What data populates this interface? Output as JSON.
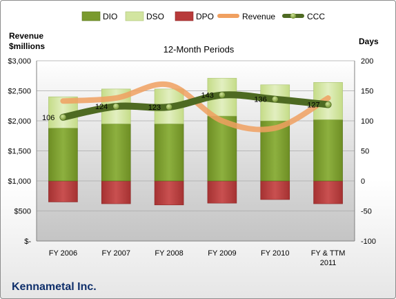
{
  "chart_data": {
    "type": "bar",
    "title": "12-Month Periods",
    "company": "Kennametal Inc.",
    "left_axis_label_line1": "Revenue",
    "left_axis_label_line2": "$millions",
    "right_axis_label": "Days",
    "left_ylim": [
      0,
      3000
    ],
    "right_ylim": [
      -100,
      200
    ],
    "left_ticks": [
      "$-",
      "$500",
      "$1,000",
      "$1,500",
      "$2,000",
      "$2,500",
      "$3,000"
    ],
    "right_ticks": [
      "-100",
      "-50",
      "0",
      "50",
      "100",
      "150",
      "200"
    ],
    "categories": [
      "FY 2006",
      "FY 2007",
      "FY 2008",
      "FY 2009",
      "FY 2010",
      "FY & TTM|2011"
    ],
    "series": [
      {
        "name": "DIO",
        "axis": "days",
        "values": [
          88,
          95,
          95,
          108,
          100,
          102
        ]
      },
      {
        "name": "DSO",
        "axis": "days",
        "values": [
          52,
          58,
          58,
          63,
          60,
          62
        ]
      },
      {
        "name": "DPO",
        "axis": "days",
        "values": [
          -35,
          -38,
          -40,
          -37,
          -31,
          -38
        ]
      },
      {
        "name": "Revenue",
        "axis": "revenue",
        "values": [
          2330,
          2380,
          2600,
          2000,
          1880,
          2380
        ]
      },
      {
        "name": "CCC",
        "axis": "days",
        "values": [
          106,
          124,
          123,
          143,
          136,
          127
        ]
      }
    ],
    "ccc_labels": [
      "106",
      "124",
      "123",
      "143",
      "136",
      "127"
    ],
    "grid": true,
    "legend": "top",
    "colors": {
      "DIO": "#7a9a2e",
      "DSO": "#d2e5a0",
      "DPO": "#b83a3a",
      "Revenue": "#f0a060",
      "CCC": "#4e6a22"
    }
  }
}
